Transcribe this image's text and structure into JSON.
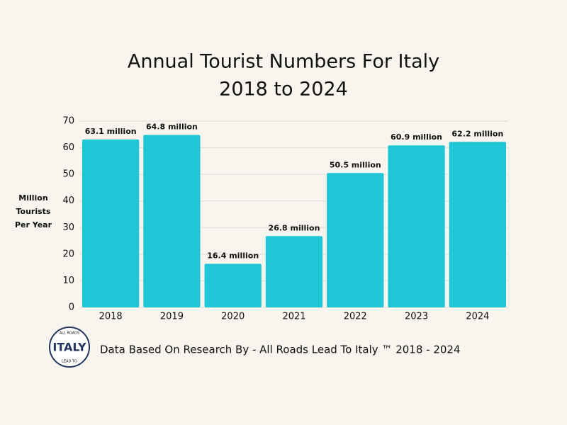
{
  "chart_data": {
    "type": "bar",
    "title": "Annual Tourist Numbers For Italy",
    "subtitle": "2018 to 2024",
    "ylabel": [
      "Million",
      "Tourists",
      "Per Year"
    ],
    "categories": [
      "2018",
      "2019",
      "2020",
      "2021",
      "2022",
      "2023",
      "2024"
    ],
    "values": [
      63.1,
      64.8,
      16.4,
      26.8,
      50.5,
      60.9,
      62.2
    ],
    "value_labels": [
      "63.1 million",
      "64.8 million",
      "16.4 million",
      "26.8 million",
      "50.5 million",
      "60.9 million",
      "62.2 million"
    ],
    "color": "#1fc6d6",
    "ylim": [
      0,
      70
    ],
    "yticks": [
      0,
      10,
      20,
      30,
      40,
      50,
      60,
      70
    ],
    "grid": true,
    "source": "Data Based On Research By - All Roads Lead To Italy ™  2018 - 2024",
    "logo": {
      "top": "ALL ROADS",
      "main": "ITALY",
      "bottom": "LEAD TO"
    }
  }
}
